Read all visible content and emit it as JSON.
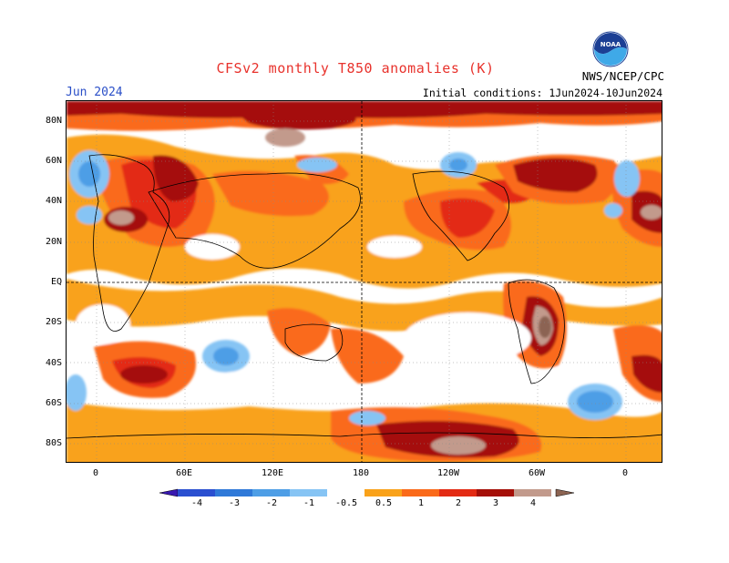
{
  "header": {
    "title": "CFSv2 monthly T850 anomalies (K)",
    "month": "Jun 2024",
    "initial_conditions": "Initial conditions: 1Jun2024-10Jun2024",
    "agency": "NWS/NCEP/CPC",
    "logo_text": "NOAA"
  },
  "axes": {
    "lat_labels": [
      "80N",
      "60N",
      "40N",
      "20N",
      "EQ",
      "20S",
      "40S",
      "60S",
      "80S"
    ],
    "lon_labels": [
      "0",
      "60E",
      "120E",
      "180",
      "120W",
      "60W",
      "0"
    ]
  },
  "colorbar": {
    "labels": [
      "-4",
      "-3",
      "-2",
      "-1",
      "-0.5",
      "0.5",
      "1",
      "2",
      "3",
      "4"
    ],
    "colors": [
      "#3818b0",
      "#2a4fd0",
      "#2f79d8",
      "#4e9ee6",
      "#86c4f4",
      "#ffffff",
      "#f9a21a",
      "#fa6a1a",
      "#e32b14",
      "#a50f08",
      "#c29a8c",
      "#8c6452"
    ]
  }
}
